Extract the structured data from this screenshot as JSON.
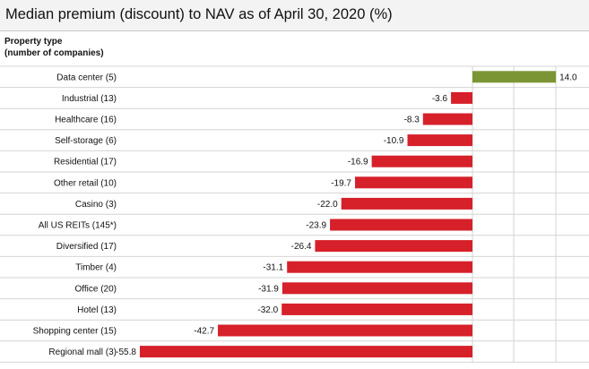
{
  "chart_data": {
    "type": "bar",
    "orientation": "horizontal",
    "title": "Median premium (discount) to NAV as of April 30, 2020 (%)",
    "ylabel_lines": [
      "Property type",
      "(number of companies)"
    ],
    "categories": [
      "Data center (5)",
      "Industrial (13)",
      "Healthcare (16)",
      "Self-storage (6)",
      "Residential (17)",
      "Other retail (10)",
      "Casino (3)",
      "All US REITs (145*)",
      "Diversified (17)",
      "Timber (4)",
      "Office (20)",
      "Hotel (13)",
      "Shopping center (15)",
      "Regional mall (3)"
    ],
    "values": [
      14.0,
      -3.6,
      -8.3,
      -10.9,
      -16.9,
      -19.7,
      -22.0,
      -23.9,
      -26.4,
      -31.1,
      -31.9,
      -32.0,
      -42.7,
      -55.8
    ],
    "value_labels": [
      "14.0",
      "-3.6",
      "-8.3",
      "-10.9",
      "-16.9",
      "-19.7",
      "-22.0",
      "-23.9",
      "-26.4",
      "-31.1",
      "-31.9",
      "-32.0",
      "-42.7",
      "-55.8"
    ],
    "xlim": [
      -55.8,
      14.0
    ],
    "colors": {
      "positive": "#7b9535",
      "negative": "#d6202a",
      "grid": "#d4d4d4",
      "header_bg": "#f3f3f3"
    }
  }
}
